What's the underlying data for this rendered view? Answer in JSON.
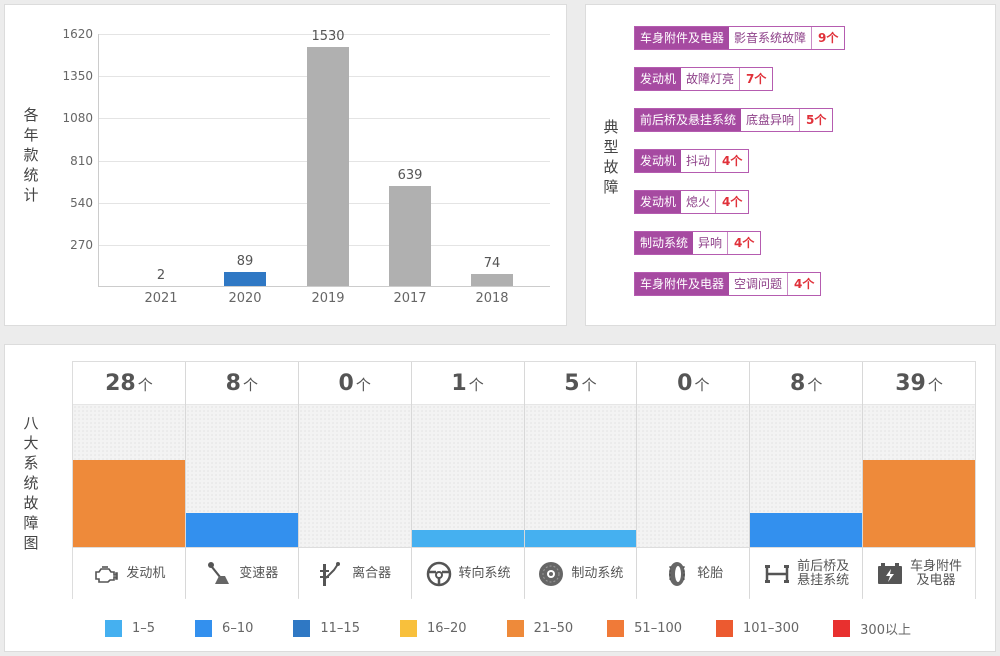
{
  "chart_data": [
    {
      "type": "bar",
      "title": "",
      "ylabel": "各年款统计",
      "xlabel": "",
      "categories": [
        "2021",
        "2020",
        "2019",
        "2017",
        "2018"
      ],
      "values": [
        2,
        89,
        1530,
        639,
        74
      ],
      "bar_colors": [
        "#b0b0b0",
        "#2f78c4",
        "#b0b0b0",
        "#b0b0b0",
        "#b0b0b0"
      ],
      "yticks": [
        270,
        540,
        810,
        1080,
        1350,
        1620
      ],
      "ylim": [
        0,
        1620
      ],
      "grid": true,
      "legend": null
    },
    {
      "type": "table",
      "title": "典型故障",
      "columns": [
        "category",
        "symptom",
        "count"
      ],
      "rows": [
        [
          "车身附件及电器",
          "影音系统故障",
          "9个"
        ],
        [
          "发动机",
          "故障灯亮",
          "7个"
        ],
        [
          "前后桥及悬挂系统",
          "底盘异响",
          "5个"
        ],
        [
          "发动机",
          "抖动",
          "4个"
        ],
        [
          "发动机",
          "熄火",
          "4个"
        ],
        [
          "制动系统",
          "异响",
          "4个"
        ],
        [
          "车身附件及电器",
          "空调问题",
          "4个"
        ]
      ]
    },
    {
      "type": "bar",
      "title": "八大系统故障图",
      "categories": [
        "发动机",
        "变速器",
        "离合器",
        "转向系统",
        "制动系统",
        "轮胎",
        "前后桥及悬挂系统",
        "车身附件及电器"
      ],
      "values": [
        28,
        8,
        0,
        1,
        5,
        0,
        8,
        39
      ],
      "unit": "个",
      "legend": [
        "1-5",
        "6-10",
        "11-15",
        "16-20",
        "21-50",
        "51-100",
        "101-300",
        "300以上"
      ],
      "legend_colors": [
        "#45b0f0",
        "#3390ee",
        "#2f78c4",
        "#f8c03c",
        "#ee8a3a",
        "#f07a38",
        "#ec5a30",
        "#e8302f"
      ]
    }
  ],
  "years": {
    "ylabel_chars": [
      "各",
      "年",
      "款",
      "统",
      "计"
    ],
    "yticks": [
      "270",
      "540",
      "810",
      "1080",
      "1350",
      "1620"
    ],
    "bars": [
      {
        "year": "2021",
        "value": "2",
        "num": 2,
        "color": "#b0b0b0"
      },
      {
        "year": "2020",
        "value": "89",
        "num": 89,
        "color": "#2f78c4"
      },
      {
        "year": "2019",
        "value": "1530",
        "num": 1530,
        "color": "#b0b0b0"
      },
      {
        "year": "2017",
        "value": "639",
        "num": 639,
        "color": "#b0b0b0"
      },
      {
        "year": "2018",
        "value": "74",
        "num": 74,
        "color": "#b0b0b0"
      }
    ]
  },
  "faults": {
    "label_chars": [
      "典",
      "型",
      "故",
      "障"
    ],
    "items": [
      {
        "cat": "车身附件及电器",
        "sym": "影音系统故障",
        "cnt": "9个"
      },
      {
        "cat": "发动机",
        "sym": "故障灯亮",
        "cnt": "7个"
      },
      {
        "cat": "前后桥及悬挂系统",
        "sym": "底盘异响",
        "cnt": "5个"
      },
      {
        "cat": "发动机",
        "sym": "抖动",
        "cnt": "4个"
      },
      {
        "cat": "发动机",
        "sym": "熄火",
        "cnt": "4个"
      },
      {
        "cat": "制动系统",
        "sym": "异响",
        "cnt": "4个"
      },
      {
        "cat": "车身附件及电器",
        "sym": "空调问题",
        "cnt": "4个"
      }
    ]
  },
  "systems": {
    "label_chars": [
      "八",
      "大",
      "系",
      "统",
      "故",
      "障",
      "图"
    ],
    "unit": "个",
    "items": [
      {
        "count": "28",
        "name": "发动机",
        "icon": "engine-icon",
        "height": 87,
        "color": "#ee8a3a"
      },
      {
        "count": "8",
        "name": "变速器",
        "icon": "gear-shift-icon",
        "height": 34,
        "color": "#3390ee"
      },
      {
        "count": "0",
        "name": "离合器",
        "icon": "clutch-icon",
        "height": 0,
        "color": "#45b0f0"
      },
      {
        "count": "1",
        "name": "转向系统",
        "icon": "steering-wheel-icon",
        "height": 17,
        "color": "#45b0f0"
      },
      {
        "count": "5",
        "name": "制动系统",
        "icon": "brake-disc-icon",
        "height": 17,
        "color": "#45b0f0"
      },
      {
        "count": "0",
        "name": "轮胎",
        "icon": "tire-icon",
        "height": 0,
        "color": "#45b0f0"
      },
      {
        "count": "8",
        "name": "前后桥及\n悬挂系统",
        "icon": "suspension-icon",
        "height": 34,
        "color": "#3390ee"
      },
      {
        "count": "39",
        "name": "车身附件\n及电器",
        "icon": "battery-icon",
        "height": 87,
        "color": "#ee8a3a"
      }
    ],
    "legend": [
      {
        "label": "1–5",
        "color": "#45b0f0"
      },
      {
        "label": "6–10",
        "color": "#3390ee"
      },
      {
        "label": "11–15",
        "color": "#2f78c4"
      },
      {
        "label": "16–20",
        "color": "#f8c03c"
      },
      {
        "label": "21–50",
        "color": "#ee8a3a"
      },
      {
        "label": "51–100",
        "color": "#f07a38"
      },
      {
        "label": "101–300",
        "color": "#ec5a30"
      },
      {
        "label": "300以上",
        "color": "#e8302f"
      }
    ]
  }
}
